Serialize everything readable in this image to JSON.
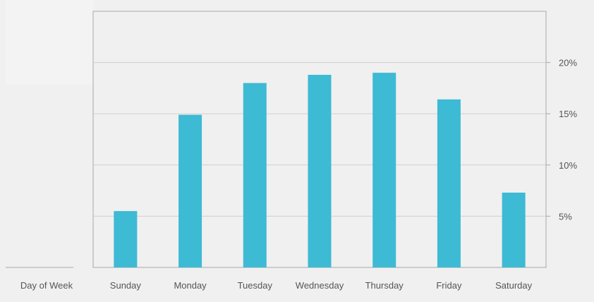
{
  "chart_data": {
    "type": "bar",
    "categories": [
      "Sunday",
      "Monday",
      "Tuesday",
      "Wednesday",
      "Thursday",
      "Friday",
      "Saturday"
    ],
    "values": [
      5.5,
      14.9,
      18.0,
      18.8,
      19.0,
      16.4,
      7.3
    ],
    "xlabel": "Day of Week",
    "ylabel": "",
    "ylim": [
      0,
      25
    ],
    "yticks": [
      5,
      10,
      15,
      20
    ],
    "tick_suffix": "%",
    "y_axis_side": "right",
    "grid": true,
    "legend": "none",
    "bar_color": "#3dbad4",
    "grid_color": "#cfcfcf",
    "axis_color": "#a8a8a8",
    "text_color": "#555555"
  }
}
